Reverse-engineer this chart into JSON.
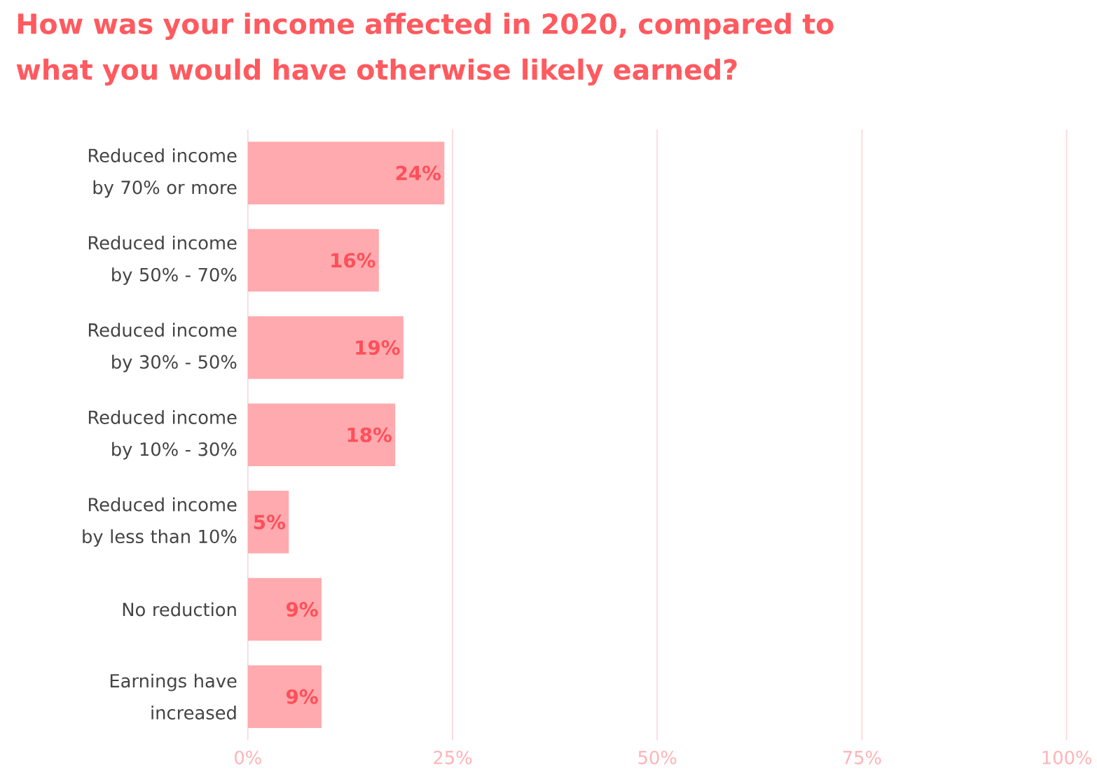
{
  "chart_data": {
    "type": "bar",
    "orientation": "horizontal",
    "title": "How was your income affected in 2020, compared to what you would have otherwise likely earned?",
    "categories": [
      "Reduced income by 70% or more",
      "Reduced income by 50% - 70%",
      "Reduced income by 30% - 50%",
      "Reduced income by 10% - 30%",
      "Reduced income by less than 10%",
      "No reduction",
      "Earnings have increased"
    ],
    "values": [
      24,
      16,
      19,
      18,
      5,
      9,
      9
    ],
    "value_labels": [
      "24%",
      "16%",
      "19%",
      "18%",
      "5%",
      "9%",
      "9%"
    ],
    "color": "#ffaaae",
    "xlim": [
      0,
      100
    ],
    "xticks": [
      {
        "value": 0,
        "label": "0%"
      },
      {
        "value": 25,
        "label": "25%"
      },
      {
        "value": 50,
        "label": "50%"
      },
      {
        "value": 75,
        "label": "75%"
      },
      {
        "value": 100,
        "label": "100%"
      }
    ],
    "grid": "x"
  }
}
